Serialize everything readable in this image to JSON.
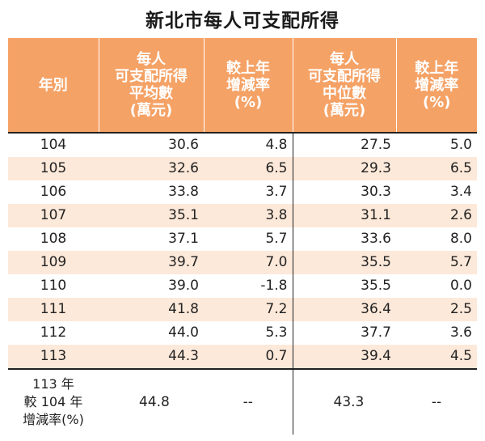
{
  "title": "新北市每人可支配所得",
  "headers": {
    "year": "年別",
    "mean": [
      "每人",
      "可支配所得",
      "平均數",
      "(萬元)"
    ],
    "mean_change": [
      "較上年",
      "增減率",
      "(%)"
    ],
    "median": [
      "每人",
      "可支配所得",
      "中位數",
      "(萬元)"
    ],
    "median_change": [
      "較上年",
      "增減率",
      "(%)"
    ]
  },
  "rows": [
    {
      "year": "104",
      "mean": "30.6",
      "mean_change": "4.8",
      "median": "27.5",
      "median_change": "5.0"
    },
    {
      "year": "105",
      "mean": "32.6",
      "mean_change": "6.5",
      "median": "29.3",
      "median_change": "6.5"
    },
    {
      "year": "106",
      "mean": "33.8",
      "mean_change": "3.7",
      "median": "30.3",
      "median_change": "3.4"
    },
    {
      "year": "107",
      "mean": "35.1",
      "mean_change": "3.8",
      "median": "31.1",
      "median_change": "2.6"
    },
    {
      "year": "108",
      "mean": "37.1",
      "mean_change": "5.7",
      "median": "33.6",
      "median_change": "8.0"
    },
    {
      "year": "109",
      "mean": "39.7",
      "mean_change": "7.0",
      "median": "35.5",
      "median_change": "5.7"
    },
    {
      "year": "110",
      "mean": "39.0",
      "mean_change": "-1.8",
      "median": "35.5",
      "median_change": "0.0"
    },
    {
      "year": "111",
      "mean": "41.8",
      "mean_change": "7.2",
      "median": "36.4",
      "median_change": "2.5"
    },
    {
      "year": "112",
      "mean": "44.0",
      "mean_change": "5.3",
      "median": "37.7",
      "median_change": "3.6"
    },
    {
      "year": "113",
      "mean": "44.3",
      "mean_change": "0.7",
      "median": "39.4",
      "median_change": "4.5"
    }
  ],
  "summary": {
    "label": [
      "113 年",
      "較 104 年",
      "增減率(%)"
    ],
    "mean": "44.8",
    "mean_change": "--",
    "median": "43.3",
    "median_change": "--"
  },
  "colors": {
    "header_bg": "#f5a266",
    "row_shade": "#fde9d9"
  }
}
